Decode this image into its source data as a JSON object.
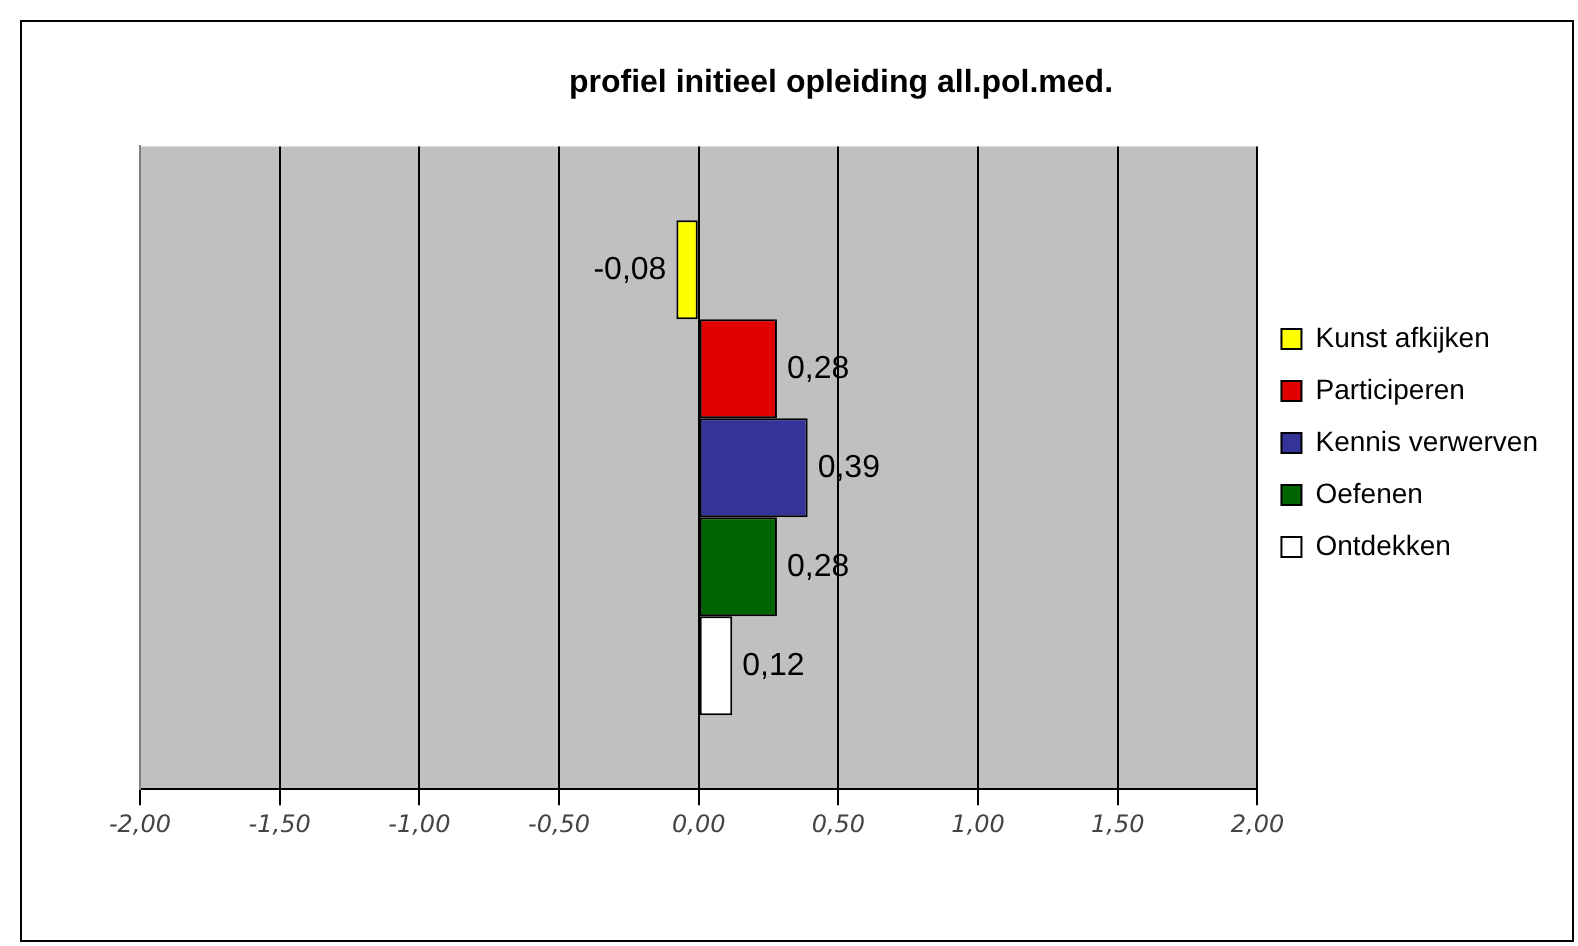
{
  "chart_data": {
    "type": "bar",
    "orientation": "horizontal",
    "title": "profiel initieel opleiding all.pol.med.",
    "categories": [
      null
    ],
    "series": [
      {
        "name": "Kunst afkijken",
        "color": "#ffff00",
        "values": [
          -0.08
        ],
        "value_labels": [
          "-0,08"
        ]
      },
      {
        "name": "Participeren",
        "color": "#e00000",
        "values": [
          0.28
        ],
        "value_labels": [
          "0,28"
        ]
      },
      {
        "name": "Kennis verwerven",
        "color": "#333399",
        "values": [
          0.39
        ],
        "value_labels": [
          "0,39"
        ]
      },
      {
        "name": "Oefenen",
        "color": "#006400",
        "values": [
          0.28
        ],
        "value_labels": [
          "0,28"
        ]
      },
      {
        "name": "Ontdekken",
        "color": "#ffffff",
        "values": [
          0.12
        ],
        "value_labels": [
          "0,12"
        ]
      }
    ],
    "xlim": [
      -2,
      2
    ],
    "xticks": [
      {
        "value": -2,
        "label": "-2,00"
      },
      {
        "value": -1.5,
        "label": "-1,50"
      },
      {
        "value": -1,
        "label": "-1,00"
      },
      {
        "value": -0.5,
        "label": "-0,50"
      },
      {
        "value": 0,
        "label": "0,00"
      },
      {
        "value": 0.5,
        "label": "0,50"
      },
      {
        "value": 1,
        "label": "1,00"
      },
      {
        "value": 1.5,
        "label": "1,50"
      },
      {
        "value": 2,
        "label": "2,00"
      }
    ],
    "grid": "x",
    "legend": "right",
    "tick_labels": "x"
  }
}
